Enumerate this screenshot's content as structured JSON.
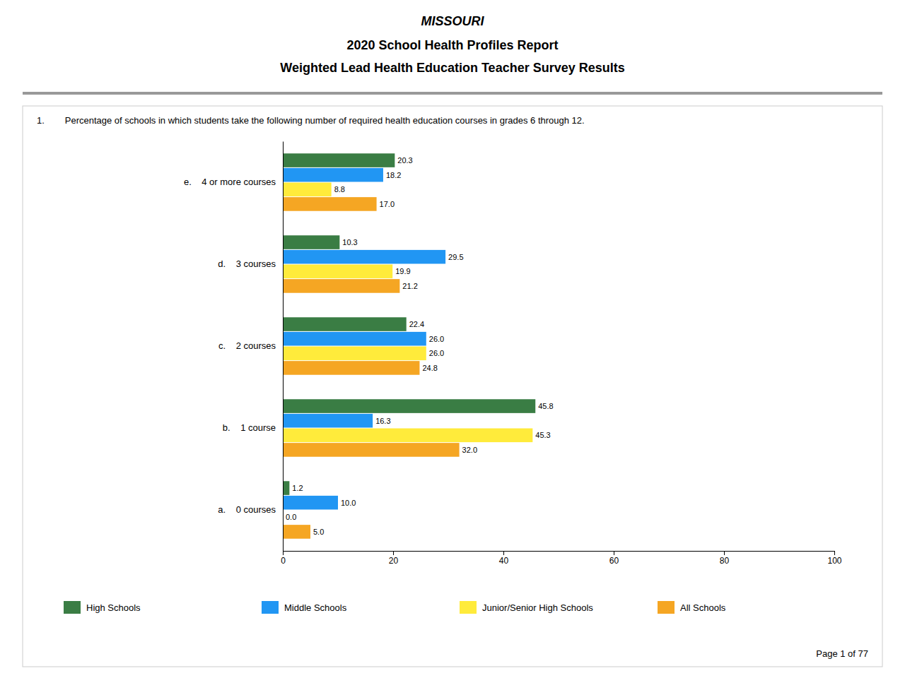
{
  "chart_data": {
    "type": "bar",
    "orientation": "horizontal",
    "title": "MISSOURI",
    "subtitle": [
      "2020 School Health Profiles Report",
      "Weighted Lead Health Education Teacher Survey Results"
    ],
    "annotations": [
      "1.        Percentage of schools in which students take the following number of required health education courses in grades 6 through 12.",
      "Page 1 of 77"
    ],
    "categories": [
      "a.    0 courses",
      "b.    1 course",
      "c.    2 courses",
      "d.    3 courses",
      "e.    4 or more courses"
    ],
    "series": [
      {
        "name": "High Schools",
        "color": "#3A7D44",
        "values": [
          1.2,
          45.8,
          22.4,
          10.3,
          20.3
        ],
        "value_labels": [
          "1.2",
          "45.8",
          "22.4",
          "10.3",
          "20.3"
        ]
      },
      {
        "name": "Middle Schools",
        "color": "#2196F3",
        "values": [
          10.0,
          16.3,
          26.0,
          29.5,
          18.2
        ],
        "value_labels": [
          "10.0",
          "16.3",
          "26.0",
          "29.5",
          "18.2"
        ]
      },
      {
        "name": "Junior/Senior High Schools",
        "color": "#FFEB3B",
        "values": [
          0.0,
          45.3,
          26.0,
          19.9,
          8.8
        ],
        "value_labels": [
          "0.0",
          "45.3",
          "26.0",
          "19.9",
          "8.8"
        ]
      },
      {
        "name": "All Schools",
        "color": "#F5A623",
        "values": [
          5.0,
          32.0,
          24.8,
          21.2,
          17.0
        ],
        "value_labels": [
          "5.0",
          "32.0",
          "24.8",
          "21.2",
          "17.0"
        ]
      }
    ],
    "xlim": [
      0,
      100
    ],
    "xticks": [
      0,
      20,
      40,
      60,
      80,
      100
    ],
    "grid": false,
    "data_labels": true,
    "legend": "bottom"
  }
}
